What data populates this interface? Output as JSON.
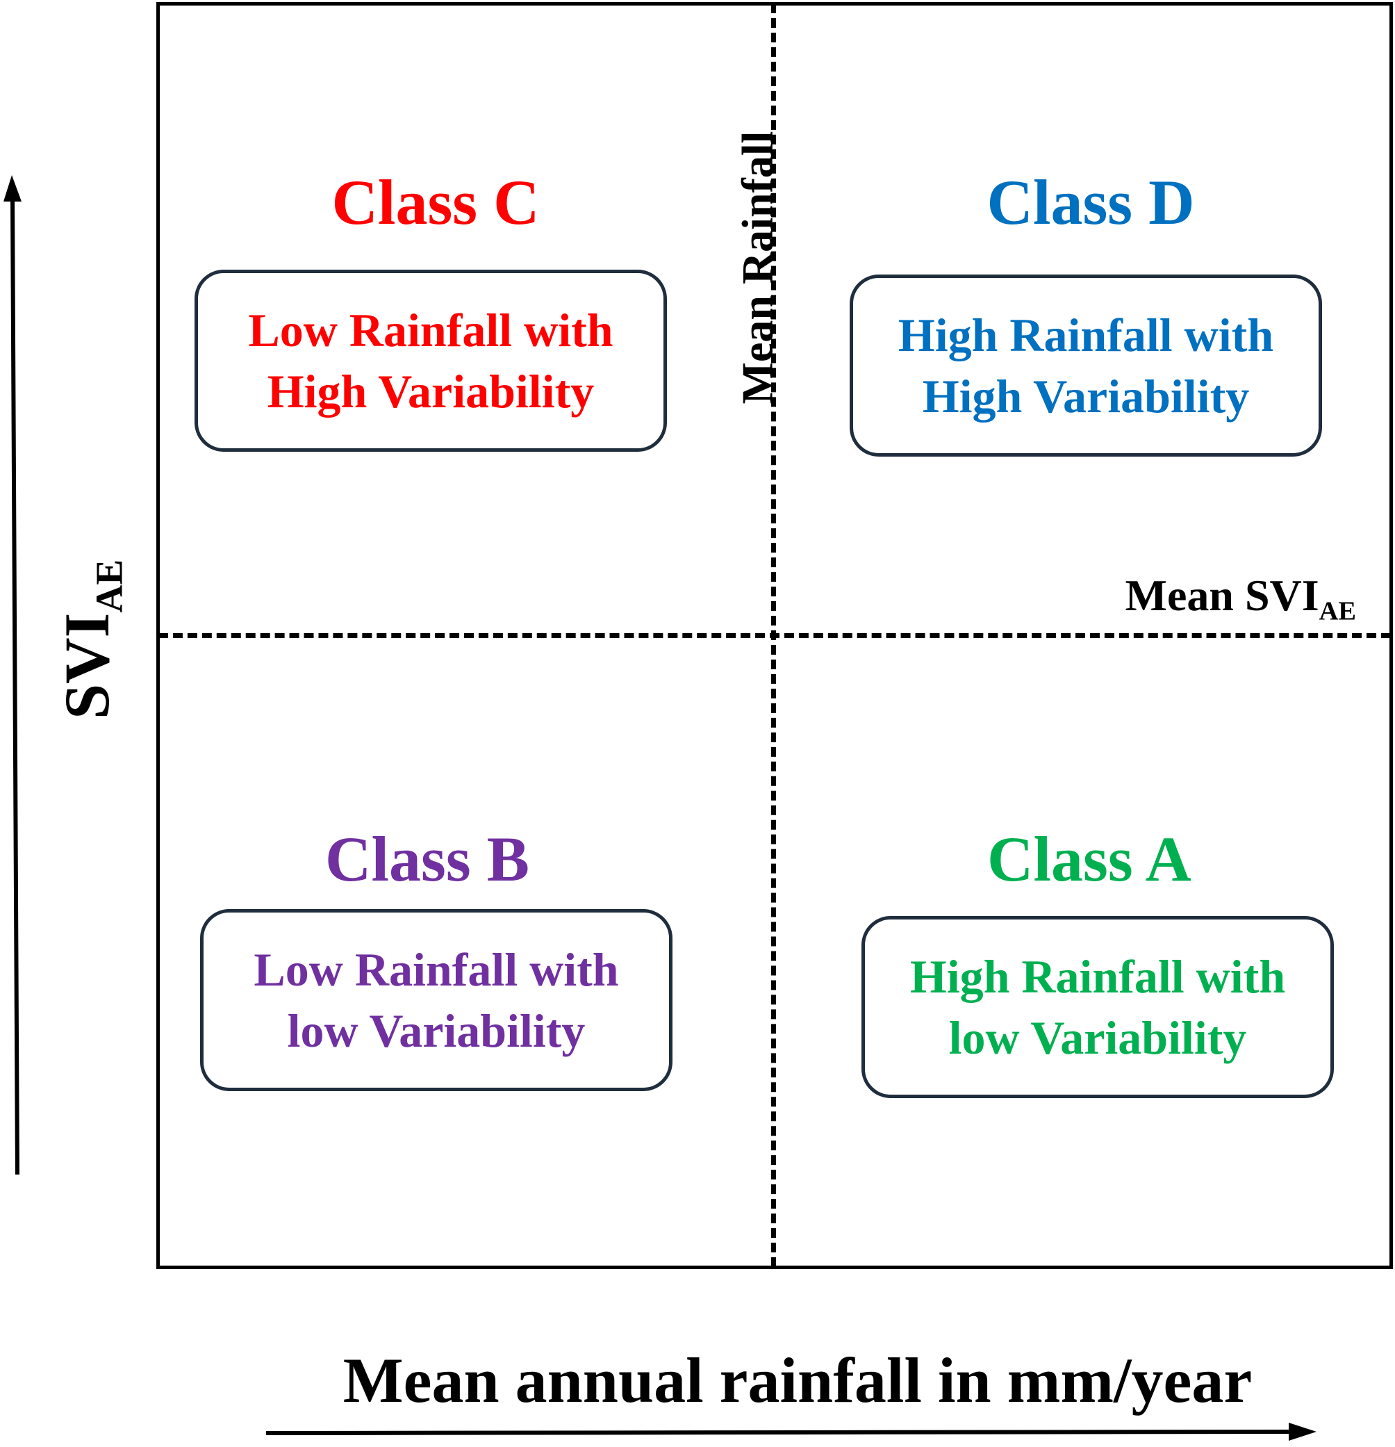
{
  "quadrants": {
    "c": {
      "title": "Class C",
      "line1": "Low Rainfall with",
      "line2": "High Variability",
      "color": "#ff0000"
    },
    "d": {
      "title": "Class D",
      "line1": "High Rainfall with",
      "line2": "High Variability",
      "color": "#0070c0"
    },
    "b": {
      "title": "Class B",
      "line1": "Low Rainfall with",
      "line2": "low Variability",
      "color": "#7030a0"
    },
    "a": {
      "title": "Class A",
      "line1": "High Rainfall with",
      "line2": "low Variability",
      "color": "#00b050"
    }
  },
  "dividers": {
    "mean_rainfall_label": "Mean Rainfall",
    "mean_svi_label": "Mean SVI",
    "mean_svi_subscript": "AE"
  },
  "axes": {
    "y_label": "SVI",
    "y_subscript": "AE",
    "x_label": "Mean annual rainfall in mm/year"
  },
  "colors": {
    "line": "#000000",
    "box_border": "#1f2d3d"
  }
}
